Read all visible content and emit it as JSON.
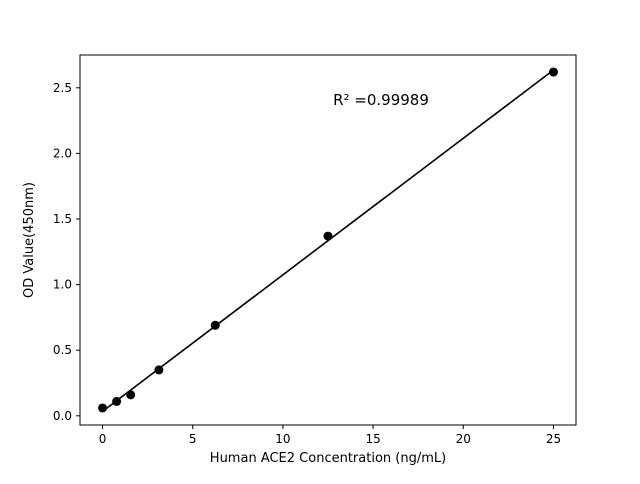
{
  "chart_data": {
    "type": "scatter",
    "title": "",
    "xlabel": "Human ACE2 Concentration (ng/mL)",
    "ylabel": "OD Value(450nm)",
    "annotation": "R² =0.99989",
    "x": [
      0,
      0.78,
      1.56,
      3.125,
      6.25,
      12.5,
      25
    ],
    "y": [
      0.06,
      0.11,
      0.16,
      0.35,
      0.69,
      1.37,
      2.62
    ],
    "fit_line": true,
    "xlim": [
      -1.25,
      26.25
    ],
    "ylim": [
      -0.07,
      2.75
    ],
    "xticks": [
      0,
      5,
      10,
      15,
      20,
      25
    ],
    "xticklabels": [
      "0",
      "5",
      "10",
      "15",
      "20",
      "25"
    ],
    "yticks": [
      0.0,
      0.5,
      1.0,
      1.5,
      2.0,
      2.5
    ],
    "yticklabels": [
      "0.0",
      "0.5",
      "1.0",
      "1.5",
      "2.0",
      "2.5"
    ],
    "grid": false,
    "legend": "none",
    "marker_color": "#000000",
    "line_color": "#000000",
    "background_color": "#ffffff"
  }
}
